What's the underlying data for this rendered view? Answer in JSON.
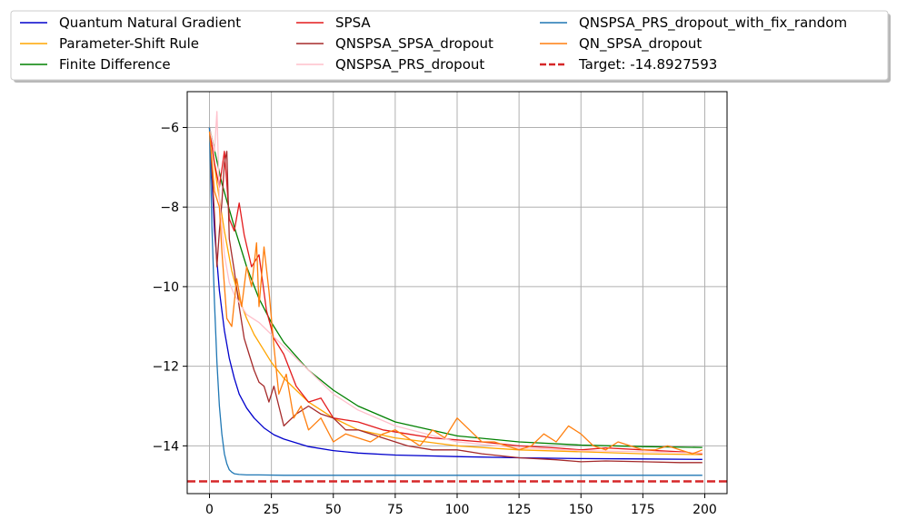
{
  "chart_data": {
    "type": "line",
    "title": "",
    "xlabel": "",
    "ylabel": "",
    "xlim": [
      -9,
      209
    ],
    "ylim": [
      -15.2,
      -5.1
    ],
    "xticks": [
      0,
      25,
      50,
      75,
      100,
      125,
      150,
      175,
      200
    ],
    "yticks": [
      -6,
      -8,
      -10,
      -12,
      -14
    ],
    "xtick_labels": [
      "0",
      "25",
      "50",
      "75",
      "100",
      "125",
      "150",
      "175",
      "200"
    ],
    "ytick_labels": [
      "−6",
      "−8",
      "−10",
      "−12",
      "−14"
    ],
    "grid": true,
    "legend": {
      "placement": "top-center, above plot",
      "columns": 3
    },
    "series": [
      {
        "name": "Quantum Natural Gradient",
        "color": "#0000cc",
        "width": 1.3,
        "x": [
          0,
          2,
          4,
          6,
          8,
          10,
          12,
          15,
          18,
          22,
          26,
          30,
          40,
          50,
          60,
          75,
          100,
          125,
          150,
          175,
          199
        ],
        "y": [
          -6.0,
          -8.6,
          -10.1,
          -11.1,
          -11.8,
          -12.3,
          -12.7,
          -13.05,
          -13.3,
          -13.55,
          -13.72,
          -13.83,
          -14.02,
          -14.12,
          -14.18,
          -14.23,
          -14.27,
          -14.3,
          -14.32,
          -14.33,
          -14.34
        ]
      },
      {
        "name": "Parameter-Shift Rule",
        "color": "#ffa500",
        "width": 1.3,
        "x": [
          0,
          3,
          6,
          9,
          12,
          15,
          18,
          21,
          25,
          30,
          35,
          40,
          50,
          60,
          75,
          100,
          125,
          150,
          175,
          199
        ],
        "y": [
          -6.0,
          -7.4,
          -8.6,
          -9.6,
          -10.3,
          -10.8,
          -11.2,
          -11.5,
          -11.9,
          -12.3,
          -12.6,
          -12.9,
          -13.3,
          -13.6,
          -13.8,
          -14.0,
          -14.1,
          -14.15,
          -14.2,
          -14.22
        ]
      },
      {
        "name": "Finite Difference",
        "color": "#008000",
        "width": 1.3,
        "x": [
          0,
          5,
          10,
          15,
          20,
          25,
          30,
          40,
          50,
          60,
          75,
          100,
          125,
          150,
          175,
          199
        ],
        "y": [
          -6.0,
          -7.4,
          -8.5,
          -9.5,
          -10.3,
          -10.9,
          -11.4,
          -12.1,
          -12.6,
          -13.0,
          -13.4,
          -13.75,
          -13.9,
          -13.98,
          -14.02,
          -14.04
        ]
      },
      {
        "name": "SPSA",
        "color": "#e31a1c",
        "width": 1.3,
        "x": [
          0,
          2,
          4,
          6,
          7,
          8,
          10,
          12,
          14,
          17,
          20,
          23,
          26,
          30,
          35,
          40,
          45,
          50,
          60,
          70,
          80,
          90,
          100,
          110,
          125,
          140,
          150,
          160,
          175,
          190,
          199
        ],
        "y": [
          -6.0,
          -6.9,
          -7.5,
          -6.6,
          -7.4,
          -8.3,
          -8.6,
          -7.9,
          -8.7,
          -9.5,
          -9.2,
          -10.6,
          -11.3,
          -11.7,
          -12.5,
          -12.9,
          -12.8,
          -13.3,
          -13.4,
          -13.6,
          -13.7,
          -13.8,
          -13.85,
          -13.9,
          -14.0,
          -14.05,
          -14.1,
          -14.05,
          -14.1,
          -14.15,
          -14.2
        ]
      },
      {
        "name": "QNSPSA_SPSA_dropout",
        "color": "#a52a2a",
        "width": 1.3,
        "x": [
          0,
          2,
          3,
          4,
          5,
          6,
          7,
          8,
          10,
          12,
          14,
          16,
          18,
          20,
          22,
          24,
          26,
          28,
          30,
          35,
          40,
          45,
          50,
          55,
          60,
          70,
          80,
          90,
          100,
          110,
          125,
          140,
          150,
          160,
          175,
          190,
          199
        ],
        "y": [
          -6.0,
          -8.2,
          -9.5,
          -8.6,
          -7.9,
          -6.9,
          -6.6,
          -8.8,
          -9.6,
          -10.5,
          -11.3,
          -11.7,
          -12.1,
          -12.4,
          -12.5,
          -12.9,
          -12.5,
          -13.0,
          -13.5,
          -13.2,
          -13.0,
          -13.2,
          -13.3,
          -13.6,
          -13.6,
          -13.8,
          -14.0,
          -14.1,
          -14.1,
          -14.2,
          -14.3,
          -14.35,
          -14.4,
          -14.38,
          -14.4,
          -14.42,
          -14.42
        ]
      },
      {
        "name": "QNSPSA_PRS_dropout",
        "color": "#ffc0cb",
        "width": 1.3,
        "x": [
          0,
          2,
          3,
          4,
          6,
          8,
          10,
          15,
          20,
          25,
          30,
          35,
          40,
          50,
          60,
          75,
          100,
          125,
          150,
          175,
          199
        ],
        "y": [
          -6.0,
          -6.6,
          -5.6,
          -7.8,
          -9.2,
          -9.9,
          -10.2,
          -10.7,
          -10.9,
          -11.2,
          -11.5,
          -11.8,
          -12.1,
          -12.7,
          -13.1,
          -13.5,
          -13.9,
          -14.05,
          -14.12,
          -14.15,
          -14.18
        ]
      },
      {
        "name": "QNSPSA_PRS_dropout_with_fix_random",
        "color": "#1f77b4",
        "width": 1.3,
        "x": [
          0,
          1,
          2,
          3,
          4,
          5,
          6,
          7,
          8,
          9,
          10,
          12,
          15,
          20,
          30,
          50,
          100,
          150,
          199
        ],
        "y": [
          -6.0,
          -8.5,
          -10.4,
          -11.9,
          -13.0,
          -13.7,
          -14.2,
          -14.45,
          -14.6,
          -14.66,
          -14.7,
          -14.72,
          -14.73,
          -14.73,
          -14.74,
          -14.74,
          -14.74,
          -14.74,
          -14.74
        ]
      },
      {
        "name": "QN_SPSA_dropout",
        "color": "#ff7f0e",
        "width": 1.3,
        "x": [
          0,
          2,
          4,
          5,
          7,
          9,
          11,
          13,
          15,
          17,
          19,
          20,
          22,
          24,
          26,
          28,
          31,
          34,
          37,
          40,
          45,
          50,
          55,
          60,
          65,
          70,
          75,
          80,
          85,
          90,
          95,
          100,
          105,
          110,
          115,
          120,
          125,
          130,
          135,
          140,
          145,
          150,
          155,
          160,
          165,
          170,
          175,
          180,
          185,
          190,
          195,
          199
        ],
        "y": [
          -6.1,
          -7.6,
          -8.0,
          -9.1,
          -10.8,
          -11.0,
          -9.8,
          -10.5,
          -9.5,
          -10.0,
          -8.9,
          -10.5,
          -9.0,
          -10.1,
          -11.5,
          -12.7,
          -12.2,
          -13.3,
          -13.0,
          -13.6,
          -13.3,
          -13.9,
          -13.7,
          -13.8,
          -13.9,
          -13.7,
          -13.6,
          -13.8,
          -14.0,
          -13.6,
          -13.8,
          -13.3,
          -13.6,
          -13.9,
          -13.9,
          -14.0,
          -14.1,
          -14.0,
          -13.7,
          -13.9,
          -13.5,
          -13.7,
          -14.0,
          -14.1,
          -13.9,
          -14.0,
          -14.1,
          -14.1,
          -14.0,
          -14.1,
          -14.2,
          -14.1
        ]
      }
    ],
    "target": {
      "name": "Target: -14.8927593",
      "value": -14.8927593,
      "color": "#d62728",
      "style": "dashed"
    }
  }
}
